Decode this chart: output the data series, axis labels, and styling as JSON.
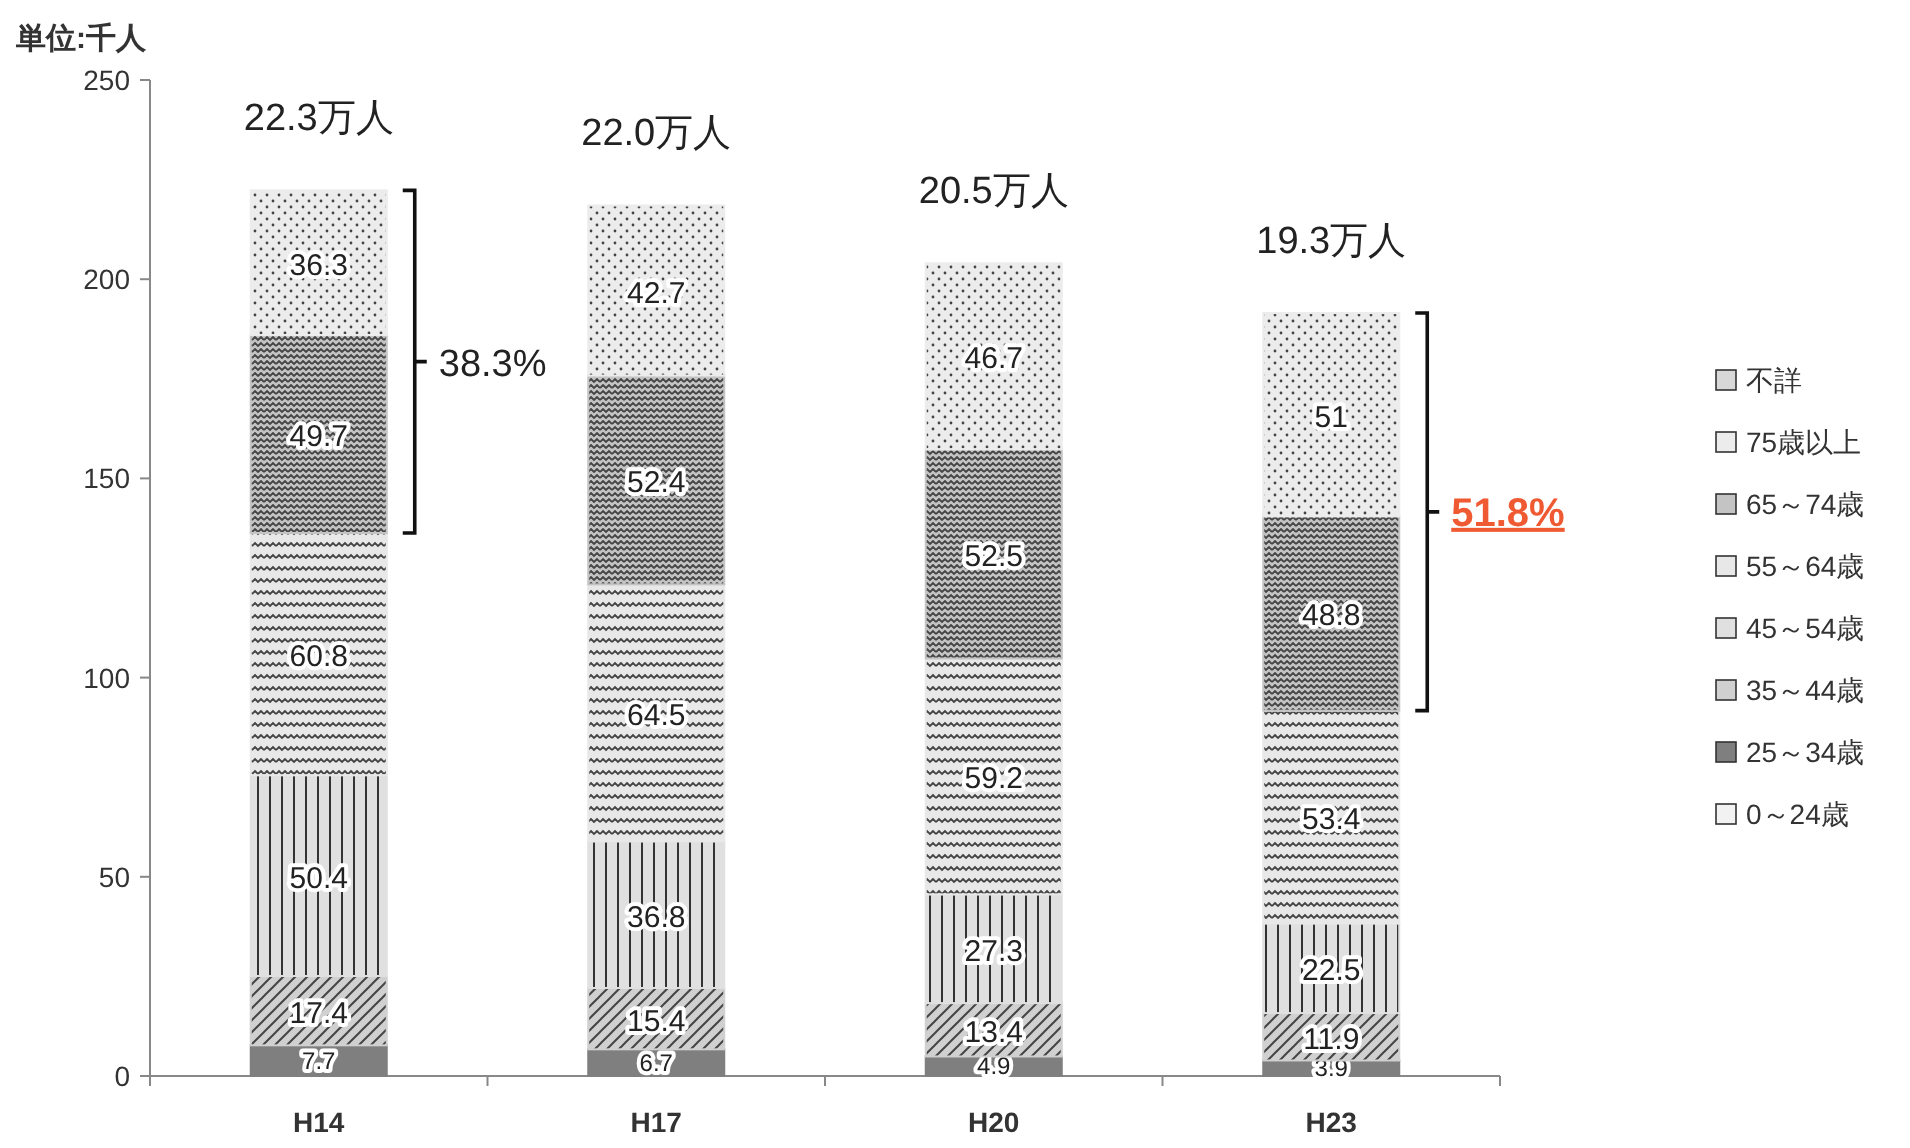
{
  "chart_data": {
    "type": "bar",
    "stacked": true,
    "ylabel": "単位:千人",
    "categories": [
      "H14",
      "H17",
      "H20",
      "H23"
    ],
    "ylim": [
      0,
      250
    ],
    "yticks": [
      0,
      50,
      100,
      150,
      200,
      250
    ],
    "grid": false,
    "legend": "right",
    "data_labels": true,
    "series": [
      {
        "name": "0～24歳",
        "color": "#f2f2f2",
        "values": [
          null,
          null,
          null,
          null
        ]
      },
      {
        "name": "25～34歳",
        "color": "#7f7f7f",
        "values": [
          7.7,
          6.7,
          4.9,
          3.9
        ]
      },
      {
        "name": "35～44歳",
        "color": "#d0d0d0",
        "values": [
          17.4,
          15.4,
          13.4,
          11.9
        ]
      },
      {
        "name": "45～54歳",
        "color": "#e0e0e0",
        "values": [
          50.4,
          36.8,
          27.3,
          22.5
        ]
      },
      {
        "name": "55～64歳",
        "color": "#e8e8e8",
        "values": [
          60.8,
          64.5,
          59.2,
          53.4
        ]
      },
      {
        "name": "65～74歳",
        "color": "#c4c4c4",
        "values": [
          49.7,
          52.4,
          52.5,
          48.8
        ]
      },
      {
        "name": "75歳以上",
        "color": "#ececec",
        "values": [
          36.3,
          42.7,
          46.7,
          51
        ]
      },
      {
        "name": "不詳",
        "color": "#d8d8d8",
        "values": [
          null,
          null,
          null,
          null
        ]
      }
    ],
    "annotations": [
      "38.3%",
      "51.8%",
      {
        "text": "22.3万人",
        "x": "H14",
        "y": 222.3
      },
      {
        "text": "22.0万人",
        "x": "H17",
        "y": 218.5
      },
      {
        "text": "20.5万人",
        "x": "H20",
        "y": 204
      },
      {
        "text": "19.3万人",
        "x": "H23",
        "y": 191.5
      }
    ]
  }
}
